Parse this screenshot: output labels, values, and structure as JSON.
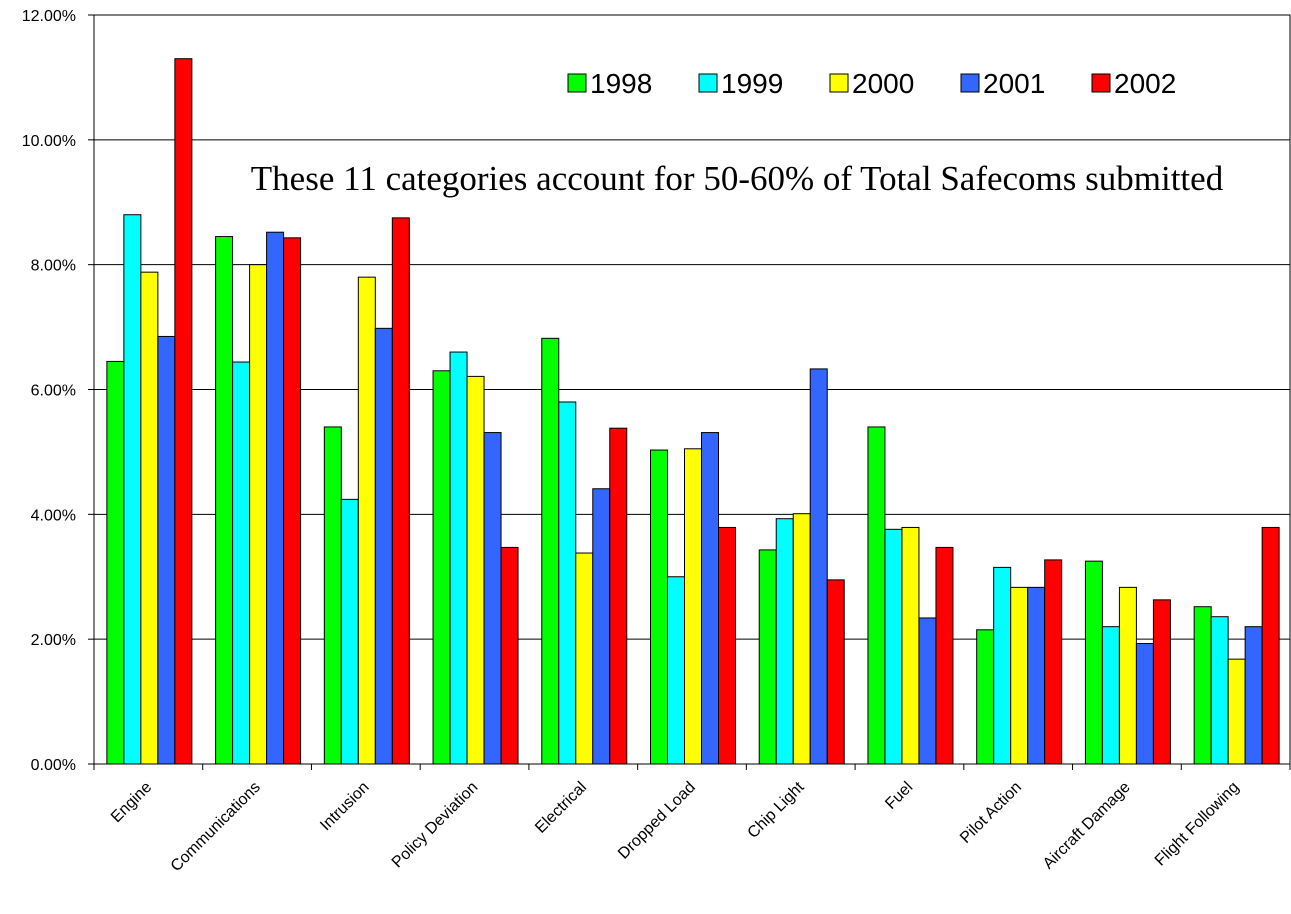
{
  "chart_data": {
    "type": "bar",
    "title": "",
    "xlabel": "",
    "ylabel": "",
    "annotation": "These 11 categories account for 50-60% of Total Safecoms submitted",
    "categories": [
      "Engine",
      "Communications",
      "Intrusion",
      "Policy Deviation",
      "Electrical",
      "Dropped Load",
      "Chip Light",
      "Fuel",
      "Pilot Action",
      "Aircraft Damage",
      "Flight Following"
    ],
    "series": [
      {
        "name": "1998",
        "color": "#00ff00",
        "values": [
          6.45,
          8.45,
          5.4,
          6.3,
          6.82,
          5.03,
          3.43,
          5.4,
          2.15,
          3.25,
          2.52
        ]
      },
      {
        "name": "1999",
        "color": "#00ffff",
        "values": [
          8.8,
          6.44,
          4.24,
          6.6,
          5.8,
          3.0,
          3.93,
          3.76,
          3.15,
          2.2,
          2.36
        ]
      },
      {
        "name": "2000",
        "color": "#ffff00",
        "values": [
          7.88,
          8.0,
          7.8,
          6.21,
          3.38,
          5.05,
          4.01,
          3.79,
          2.83,
          2.83,
          1.68
        ]
      },
      {
        "name": "2001",
        "color": "#3366ff",
        "values": [
          6.85,
          8.52,
          6.98,
          5.31,
          4.41,
          5.31,
          6.33,
          2.34,
          2.83,
          1.93,
          2.2
        ]
      },
      {
        "name": "2002",
        "color": "#ff0000",
        "values": [
          11.3,
          8.43,
          8.75,
          3.47,
          5.38,
          3.79,
          2.95,
          3.47,
          3.27,
          2.63,
          3.79
        ]
      }
    ],
    "ylim": [
      0,
      12
    ],
    "yticks": [
      "0.00%",
      "2.00%",
      "4.00%",
      "6.00%",
      "8.00%",
      "10.00%",
      "12.00%"
    ],
    "grid": true,
    "legend": "top-right"
  }
}
